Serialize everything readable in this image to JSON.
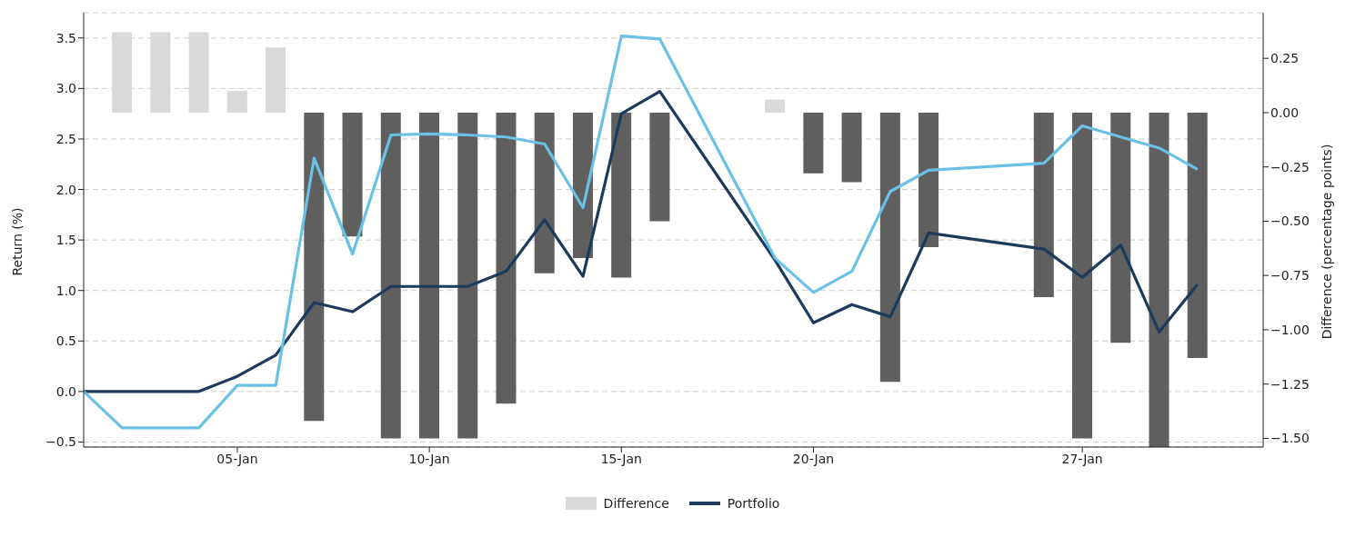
{
  "chart_data": {
    "type": "line",
    "ylabel": "Return (%)",
    "y2label": "Difference (percentage points)",
    "x": [
      "--01-01",
      "--01-02",
      "--01-03",
      "--01-04",
      "--01-05",
      "--01-06",
      "--01-07",
      "--01-08",
      "--01-09",
      "--01-10",
      "--01-11",
      "--01-12",
      "--01-13",
      "--01-14",
      "--01-15",
      "--01-16",
      "--01-19",
      "--01-20",
      "--01-21",
      "--01-22",
      "--01-23",
      "--01-26",
      "--01-27",
      "--01-28",
      "--01-29",
      "--01-30"
    ],
    "xlim": [
      "--01-01",
      "--01-31T17:00"
    ],
    "xticks": [
      {
        "value": "--01-05",
        "label": "05-Jan"
      },
      {
        "value": "--01-10",
        "label": "10-Jan"
      },
      {
        "value": "--01-15",
        "label": "15-Jan"
      },
      {
        "value": "--01-20",
        "label": "20-Jan"
      },
      {
        "value": "--01-27",
        "label": "27-Jan"
      }
    ],
    "ylim": [
      -0.55,
      3.75
    ],
    "yticks": [
      {
        "value": -0.5,
        "label": "−0.5"
      },
      {
        "value": 0,
        "label": "0.0"
      },
      {
        "value": 0.5,
        "label": "0.5"
      },
      {
        "value": 1,
        "label": "1.0"
      },
      {
        "value": 1.5,
        "label": "1.5"
      },
      {
        "value": 2,
        "label": "2.0"
      },
      {
        "value": 2.5,
        "label": "2.5"
      },
      {
        "value": 3,
        "label": "3.0"
      },
      {
        "value": 3.5,
        "label": "3.5"
      }
    ],
    "y2lim": [
      -1.54,
      0.46
    ],
    "y2ticks": [
      {
        "value": -1.5,
        "label": "−1.50"
      },
      {
        "value": -1.25,
        "label": "−1.25"
      },
      {
        "value": -1,
        "label": "−1.00"
      },
      {
        "value": -0.75,
        "label": "−0.75"
      },
      {
        "value": -0.5,
        "label": "−0.50"
      },
      {
        "value": -0.25,
        "label": "−0.25"
      },
      {
        "value": 0,
        "label": "0.00"
      },
      {
        "value": 0.25,
        "label": "0.25"
      }
    ],
    "series": [
      {
        "type": "bar",
        "axis": "y2",
        "name": "Difference",
        "color": "#d9d9d9",
        "colors": [
          "#d9d9d9",
          "#d9d9d9",
          "#d9d9d9",
          "#d9d9d9",
          "#d9d9d9",
          "#d9d9d9",
          "#5f5f5f",
          "#5f5f5f",
          "#5f5f5f",
          "#5f5f5f",
          "#5f5f5f",
          "#5f5f5f",
          "#5f5f5f",
          "#5f5f5f",
          "#5f5f5f",
          "#5f5f5f",
          "#d9d9d9",
          "#5f5f5f",
          "#5f5f5f",
          "#5f5f5f",
          "#5f5f5f",
          "#5f5f5f",
          "#5f5f5f",
          "#5f5f5f",
          "#5f5f5f",
          "#5f5f5f"
        ],
        "values": [
          null,
          0.37,
          0.37,
          0.37,
          0.1,
          0.3,
          -1.42,
          -0.57,
          -1.5,
          -1.5,
          -1.5,
          -1.34,
          -0.74,
          -0.67,
          -0.76,
          -0.5,
          0.06,
          -0.28,
          -0.32,
          -1.24,
          -0.62,
          -0.85,
          -1.5,
          -1.06,
          -1.54,
          -1.13
        ]
      },
      {
        "name": "Portfolio",
        "color": "#1b3a5c",
        "values": [
          0,
          0,
          0,
          0,
          0.15,
          0.36,
          0.88,
          0.79,
          1.04,
          1.04,
          1.04,
          1.19,
          1.7,
          1.14,
          2.75,
          2.97,
          1.3,
          0.68,
          0.86,
          0.74,
          1.57,
          1.41,
          1.13,
          1.45,
          0.59,
          1.06
        ]
      },
      {
        "color": "#6bc0e6",
        "values": [
          0,
          -0.36,
          -0.36,
          -0.36,
          0.06,
          0.06,
          2.31,
          1.36,
          2.54,
          2.55,
          2.54,
          2.52,
          2.45,
          1.82,
          3.52,
          3.49,
          1.32,
          0.98,
          1.19,
          1.98,
          2.19,
          2.26,
          2.63,
          2.52,
          2.41,
          2.2
        ]
      }
    ],
    "grid": "y",
    "legend": "bottom"
  }
}
